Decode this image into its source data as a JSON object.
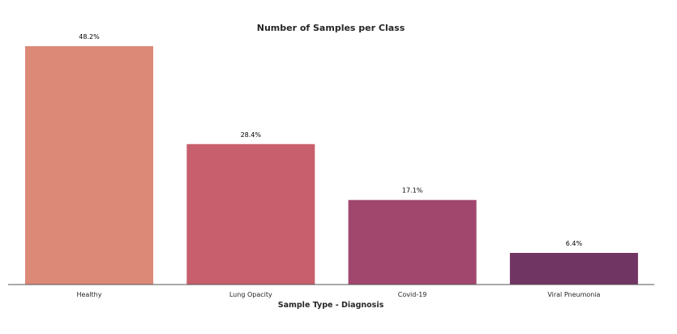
{
  "chart_data": {
    "type": "bar",
    "title": "Number of Samples per Class",
    "xlabel": "Sample Type - Diagnosis",
    "ylabel": "",
    "categories": [
      "Healthy",
      "Lung Opacity",
      "Covid-19",
      "Viral Pneumonia"
    ],
    "values": [
      48.2,
      28.4,
      17.1,
      6.4
    ],
    "data_labels": [
      "48.2%",
      "28.4%",
      "17.1%",
      "6.4%"
    ],
    "colors": [
      "#dc8977",
      "#c85f6c",
      "#a1476d",
      "#713563"
    ],
    "ylim": [
      0,
      50
    ],
    "grid": false,
    "legend": "none"
  }
}
